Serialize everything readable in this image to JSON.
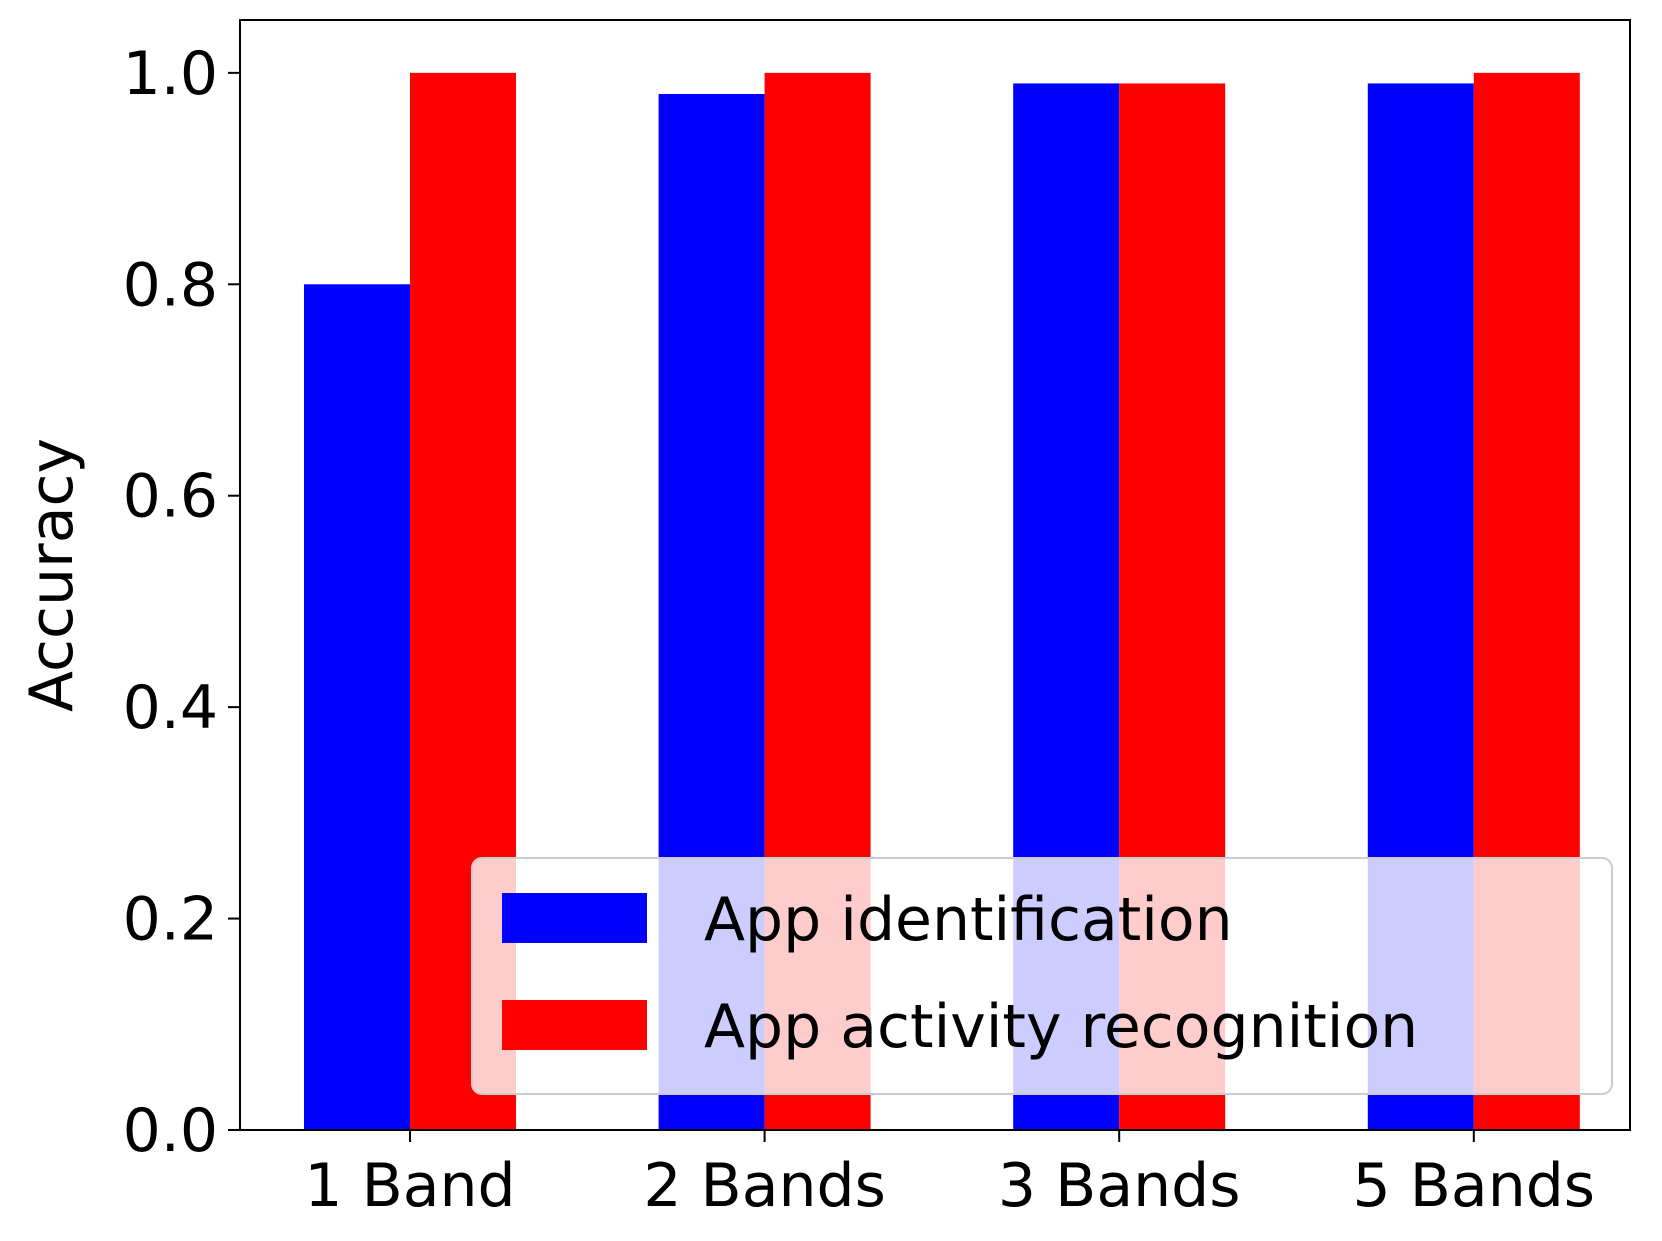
{
  "chart_data": {
    "type": "bar",
    "title": "",
    "xlabel": "",
    "ylabel": "Accuracy",
    "categories": [
      "1 Band",
      "2 Bands",
      "3 Bands",
      "5 Bands"
    ],
    "series": [
      {
        "name": "App identification",
        "color": "#0000ff",
        "values": [
          0.8,
          0.98,
          0.99,
          0.99
        ]
      },
      {
        "name": "App activity recognition",
        "color": "#ff0000",
        "values": [
          1.0,
          1.0,
          0.99,
          1.0
        ]
      }
    ],
    "ylim": [
      0,
      1.05
    ],
    "yticks": [
      "0.0",
      "0.2",
      "0.4",
      "0.6",
      "0.8",
      "1.0"
    ],
    "grid": false,
    "legend_position": "lower right"
  }
}
